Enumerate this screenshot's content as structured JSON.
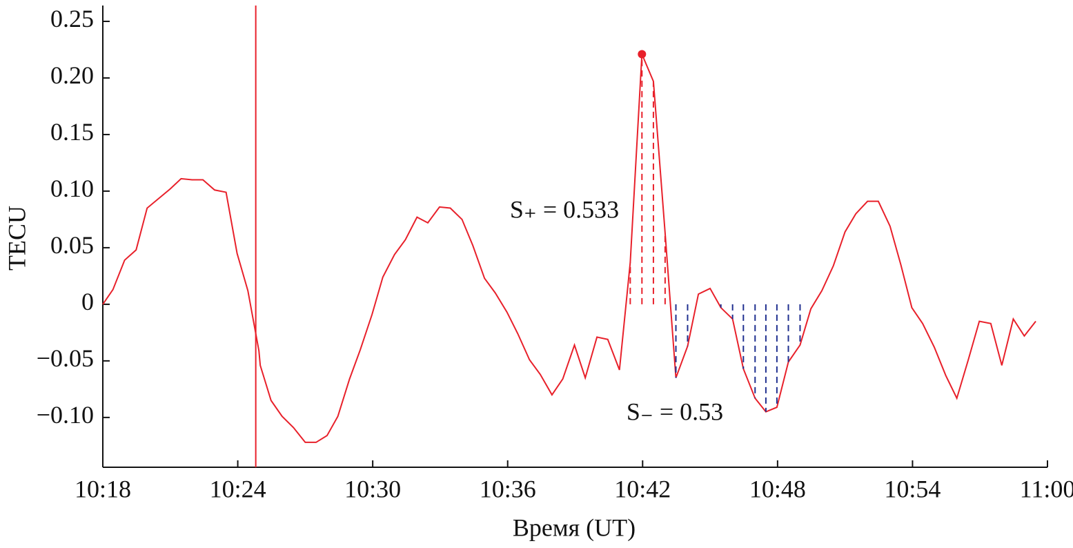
{
  "chart_data": {
    "type": "line",
    "y_label": "TECU",
    "x_label": "Время (UT)",
    "x": [
      618,
      618.45,
      618.97,
      619.48,
      619.97,
      621,
      621.48,
      621.97,
      622.45,
      622.97,
      623.48,
      623.97,
      624.45,
      624.94,
      625.0,
      625.48,
      625.97,
      626.48,
      627,
      627.48,
      627.97,
      628.45,
      628.97,
      629.45,
      629.97,
      630.45,
      630.97,
      631.45,
      631.97,
      632.45,
      632.97,
      633.45,
      633.97,
      634.45,
      634.97,
      635.45,
      635.97,
      636.45,
      636.97,
      637.45,
      637.97,
      638.45,
      638.97,
      639.45,
      639.97,
      640.45,
      640.97,
      641.45,
      641.97,
      642.48,
      643.0,
      643.48,
      644.0,
      644.48,
      645.0,
      645.48,
      646.0,
      646.48,
      647.0,
      647.48,
      647.97,
      648.48,
      649.0,
      649.48,
      649.97,
      650.48,
      651.0,
      651.48,
      652.0,
      652.48,
      653.0,
      653.48,
      653.97,
      654.45,
      654.97,
      655.48,
      655.97,
      656.48,
      656.97,
      657.48,
      657.97,
      658.48,
      658.97,
      659.48
    ],
    "series": [
      {
        "color": "#e8202a",
        "values": [
          0,
          0.013,
          0.039,
          0.048,
          0.085,
          0.102,
          0.111,
          0.11,
          0.11,
          0.101,
          0.099,
          0.045,
          0.012,
          -0.041,
          -0.054,
          -0.085,
          -0.099,
          -0.109,
          -0.122,
          -0.122,
          -0.116,
          -0.099,
          -0.066,
          -0.04,
          -0.009,
          0.024,
          0.044,
          0.057,
          0.077,
          0.072,
          0.086,
          0.085,
          0.075,
          0.052,
          0.023,
          0.01,
          -0.007,
          -0.026,
          -0.049,
          -0.062,
          -0.08,
          -0.066,
          -0.036,
          -0.065,
          -0.029,
          -0.031,
          -0.058,
          0.037,
          0.221,
          0.197,
          0.063,
          -0.065,
          -0.037,
          0.009,
          0.014,
          -0.003,
          -0.013,
          -0.057,
          -0.083,
          -0.095,
          -0.091,
          -0.051,
          -0.036,
          -0.004,
          0.012,
          0.034,
          0.064,
          0.08,
          0.091,
          0.091,
          0.069,
          0.035,
          -0.003,
          -0.017,
          -0.038,
          -0.063,
          -0.083,
          -0.049,
          -0.015,
          -0.017,
          -0.054,
          -0.013,
          -0.028,
          -0.015
        ]
      }
    ],
    "event_x": 624.8,
    "areas": [
      {
        "label": "S₊ = 0.533",
        "color": "#e8202a",
        "x_range": [
          641.45,
          643.0
        ]
      },
      {
        "label": "S₋ = 0.53",
        "color": "#1f2f8f",
        "x_range": [
          643.48,
          649.0
        ]
      }
    ],
    "xlim": [
      618,
      660
    ],
    "xticks": [
      {
        "value": 618,
        "label": "10:18"
      },
      {
        "value": 624,
        "label": "10:24"
      },
      {
        "value": 630,
        "label": "10:30"
      },
      {
        "value": 636,
        "label": "10:36"
      },
      {
        "value": 642,
        "label": "10:42"
      },
      {
        "value": 648,
        "label": "10:48"
      },
      {
        "value": 654,
        "label": "10:54"
      },
      {
        "value": 660,
        "label": "11:00"
      }
    ],
    "ylim": [
      -0.144,
      0.264
    ],
    "yticks": [
      {
        "value": -0.1,
        "label": "−0.10"
      },
      {
        "value": -0.05,
        "label": "−0.05"
      },
      0,
      0.05,
      {
        "value": 0.1,
        "label": "0.10"
      },
      {
        "value": 0.15,
        "label": "0.15"
      },
      {
        "value": 0.2,
        "label": "0.20"
      },
      0.25
    ]
  }
}
